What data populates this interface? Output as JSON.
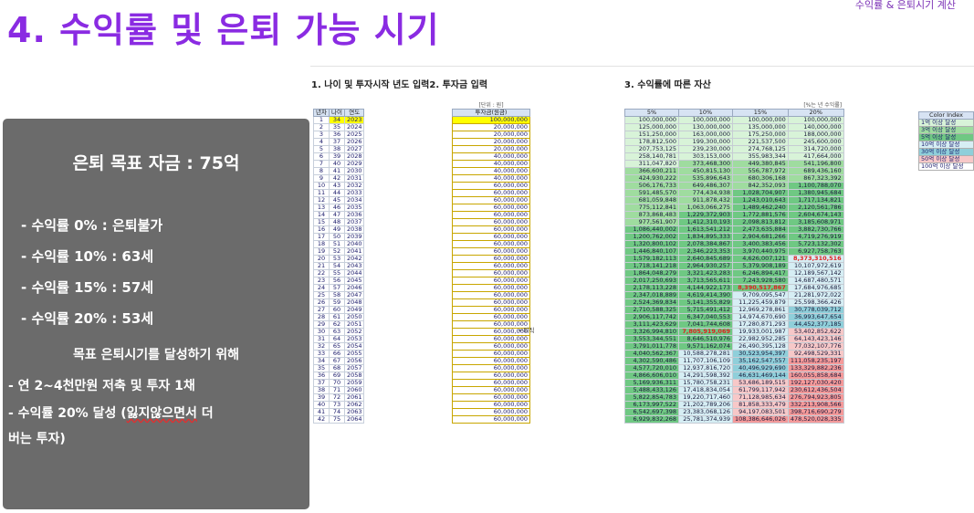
{
  "header": {
    "title": "4. 수익률 및 은퇴 가능 시기",
    "top_right": "수익률 & 은퇴시기 계산"
  },
  "sections": {
    "s1": "1. 나이 및 투자시작 년도 입력2. 투자금 입력",
    "s3": "3. 수익률에 따른 자산"
  },
  "panel": {
    "goal": "은퇴 목표 자금 : 75억",
    "rates": [
      "- 수익률   0% : 은퇴불가",
      "- 수익률 10% : 63세",
      "- 수익률 15% : 57세",
      "- 수익률 20% : 53세"
    ],
    "subtitle": "목표 은퇴시기를 달성하기 위해",
    "bullet1": "- 연 2~4천만원 저축 및 투자 1채",
    "bullet2a": "- 수익률 20% 달성 (",
    "bullet2b": "잃지않으면서",
    "bullet2c": " 더",
    "bullet3": "버는 투자)"
  },
  "table_age": {
    "headers": [
      "년차",
      "나이",
      "연도"
    ],
    "rows": [
      [
        "1",
        "34",
        "2023"
      ],
      [
        "2",
        "35",
        "2024"
      ],
      [
        "3",
        "36",
        "2025"
      ],
      [
        "4",
        "37",
        "2026"
      ],
      [
        "5",
        "38",
        "2027"
      ],
      [
        "6",
        "39",
        "2028"
      ],
      [
        "7",
        "40",
        "2029"
      ],
      [
        "8",
        "41",
        "2030"
      ],
      [
        "9",
        "42",
        "2031"
      ],
      [
        "10",
        "43",
        "2032"
      ],
      [
        "11",
        "44",
        "2033"
      ],
      [
        "12",
        "45",
        "2034"
      ],
      [
        "13",
        "46",
        "2035"
      ],
      [
        "14",
        "47",
        "2036"
      ],
      [
        "15",
        "48",
        "2037"
      ],
      [
        "16",
        "49",
        "2038"
      ],
      [
        "17",
        "50",
        "2039"
      ],
      [
        "18",
        "51",
        "2040"
      ],
      [
        "19",
        "52",
        "2041"
      ],
      [
        "20",
        "53",
        "2042"
      ],
      [
        "21",
        "54",
        "2043"
      ],
      [
        "22",
        "55",
        "2044"
      ],
      [
        "23",
        "56",
        "2045"
      ],
      [
        "24",
        "57",
        "2046"
      ],
      [
        "25",
        "58",
        "2047"
      ],
      [
        "26",
        "59",
        "2048"
      ],
      [
        "27",
        "60",
        "2049"
      ],
      [
        "28",
        "61",
        "2050"
      ],
      [
        "29",
        "62",
        "2051"
      ],
      [
        "30",
        "63",
        "2052"
      ],
      [
        "31",
        "64",
        "2053"
      ],
      [
        "32",
        "65",
        "2054"
      ],
      [
        "33",
        "66",
        "2055"
      ],
      [
        "34",
        "67",
        "2056"
      ],
      [
        "35",
        "68",
        "2057"
      ],
      [
        "36",
        "69",
        "2058"
      ],
      [
        "37",
        "70",
        "2059"
      ],
      [
        "38",
        "71",
        "2060"
      ],
      [
        "39",
        "72",
        "2061"
      ],
      [
        "40",
        "73",
        "2062"
      ],
      [
        "41",
        "74",
        "2063"
      ],
      [
        "42",
        "75",
        "2064"
      ]
    ]
  },
  "table_invest": {
    "unit": "[단위 : 원]",
    "header": "투자금(원금)",
    "values": [
      "100,000,000",
      "20,000,000",
      "20,000,000",
      "20,000,000",
      "20,000,000",
      "40,000,000",
      "40,000,000",
      "40,000,000",
      "40,000,000",
      "60,000,000",
      "60,000,000",
      "60,000,000",
      "60,000,000",
      "60,000,000",
      "60,000,000",
      "60,000,000",
      "60,000,000",
      "60,000,000",
      "60,000,000",
      "60,000,000",
      "60,000,000",
      "60,000,000",
      "60,000,000",
      "60,000,000",
      "60,000,000",
      "60,000,000",
      "60,000,000",
      "60,000,000",
      "60,000,000",
      "60,000,000",
      "60,000,000",
      "60,000,000",
      "60,000,000",
      "60,000,000",
      "60,000,000",
      "60,000,000",
      "60,000,000",
      "60,000,000",
      "60,000,000",
      "60,000,000",
      "60,000,000",
      "60,000,000"
    ],
    "retire_note": "←퇴직"
  },
  "table_assets": {
    "unit": "[%는 년 수익률]",
    "headers": [
      "5%",
      "10%",
      "15%",
      "20%"
    ],
    "rows": [
      [
        "100,000,000",
        "100,000,000",
        "100,000,000",
        "100,000,000"
      ],
      [
        "125,000,000",
        "130,000,000",
        "135,000,000",
        "140,000,000"
      ],
      [
        "151,250,000",
        "163,000,000",
        "175,250,000",
        "188,000,000"
      ],
      [
        "178,812,500",
        "199,300,000",
        "221,537,500",
        "245,600,000"
      ],
      [
        "207,753,125",
        "239,230,000",
        "274,768,125",
        "314,720,000"
      ],
      [
        "258,140,781",
        "303,153,000",
        "355,983,344",
        "417,664,000"
      ],
      [
        "311,047,820",
        "373,468,300",
        "449,380,845",
        "541,196,800"
      ],
      [
        "366,600,211",
        "450,815,130",
        "556,787,972",
        "689,436,160"
      ],
      [
        "424,930,222",
        "535,896,643",
        "680,306,168",
        "867,323,392"
      ],
      [
        "506,176,733",
        "649,486,307",
        "842,352,093",
        "1,100,788,070"
      ],
      [
        "591,485,570",
        "774,434,938",
        "1,028,704,907",
        "1,380,945,684"
      ],
      [
        "681,059,848",
        "911,878,432",
        "1,243,010,643",
        "1,717,134,821"
      ],
      [
        "775,112,841",
        "1,063,066,275",
        "1,489,462,240",
        "2,120,561,786"
      ],
      [
        "873,868,483",
        "1,229,372,903",
        "1,772,881,576",
        "2,604,674,143"
      ],
      [
        "977,561,907",
        "1,412,310,193",
        "2,098,813,812",
        "3,185,608,971"
      ],
      [
        "1,086,440,002",
        "1,613,541,212",
        "2,473,635,884",
        "3,882,730,766"
      ],
      [
        "1,200,762,002",
        "1,834,895,333",
        "2,904,681,266",
        "4,719,276,919"
      ],
      [
        "1,320,800,102",
        "2,078,384,867",
        "3,400,383,456",
        "5,723,132,302"
      ],
      [
        "1,446,840,107",
        "2,346,223,353",
        "3,970,440,975",
        "6,927,758,763"
      ],
      [
        "1,579,182,113",
        "2,640,845,689",
        "4,626,007,121",
        "8,373,310,516"
      ],
      [
        "1,718,141,218",
        "2,964,930,257",
        "5,379,908,189",
        "10,107,972,619"
      ],
      [
        "1,864,048,279",
        "3,321,423,283",
        "6,246,894,417",
        "12,189,567,142"
      ],
      [
        "2,017,250,693",
        "3,713,565,611",
        "7,243,928,580",
        "14,687,480,571"
      ],
      [
        "2,178,113,228",
        "4,144,922,173",
        "8,390,517,867",
        "17,684,976,685"
      ],
      [
        "2,347,018,889",
        "4,619,414,390",
        "9,709,095,547",
        "21,281,972,022"
      ],
      [
        "2,524,369,834",
        "5,141,355,829",
        "11,225,459,879",
        "25,598,366,426"
      ],
      [
        "2,710,588,325",
        "5,715,491,412",
        "12,969,278,861",
        "30,778,039,712"
      ],
      [
        "2,906,117,742",
        "6,347,040,553",
        "14,974,670,690",
        "36,993,647,654"
      ],
      [
        "3,111,423,629",
        "7,041,744,608",
        "17,280,871,293",
        "44,452,377,185"
      ],
      [
        "3,326,994,810",
        "7,805,919,069",
        "19,933,001,987",
        "53,402,852,622"
      ],
      [
        "3,553,344,551",
        "8,646,510,976",
        "22,982,952,285",
        "64,143,423,146"
      ],
      [
        "3,791,011,778",
        "9,571,162,074",
        "26,490,395,128",
        "77,032,107,776"
      ],
      [
        "4,040,562,367",
        "10,588,278,281",
        "30,523,954,397",
        "92,498,529,331"
      ],
      [
        "4,302,590,486",
        "11,707,106,109",
        "35,162,547,557",
        "111,058,235,197"
      ],
      [
        "4,577,720,010",
        "12,937,816,720",
        "40,496,929,690",
        "133,329,882,236"
      ],
      [
        "4,866,606,010",
        "14,291,598,392",
        "46,631,469,144",
        "160,055,858,684"
      ],
      [
        "5,169,936,311",
        "15,780,758,231",
        "53,686,189,515",
        "192,127,030,420"
      ],
      [
        "5,488,433,126",
        "17,418,834,054",
        "61,799,117,942",
        "230,612,436,504"
      ],
      [
        "5,822,854,783",
        "19,220,717,460",
        "71,128,985,634",
        "276,794,923,805"
      ],
      [
        "6,173,997,522",
        "21,202,789,206",
        "81,858,333,479",
        "332,213,908,566"
      ],
      [
        "6,542,697,398",
        "23,383,068,126",
        "94,197,083,501",
        "398,716,690,279"
      ],
      [
        "6,929,832,268",
        "25,781,374,939",
        "108,386,646,026",
        "478,520,028,335"
      ]
    ],
    "classes": [
      [
        "c1",
        "c1",
        "c1",
        "c1"
      ],
      [
        "c1",
        "c1",
        "c1",
        "c1"
      ],
      [
        "c1",
        "c1",
        "c1",
        "c1"
      ],
      [
        "c1",
        "c1",
        "c1",
        "c1"
      ],
      [
        "c1",
        "c1",
        "c1",
        "c1"
      ],
      [
        "c1",
        "c1",
        "c1",
        "c1"
      ],
      [
        "c1",
        "c3",
        "c3",
        "c3"
      ],
      [
        "c3",
        "c3",
        "c3",
        "c3"
      ],
      [
        "c3",
        "c3",
        "c3",
        "c3"
      ],
      [
        "c3",
        "c3",
        "c3",
        "c5"
      ],
      [
        "c3",
        "c3",
        "c5",
        "c5"
      ],
      [
        "c3",
        "c3",
        "c5",
        "c5"
      ],
      [
        "c3",
        "c3",
        "c5",
        "c5"
      ],
      [
        "c3",
        "c5",
        "c5",
        "c5"
      ],
      [
        "c3",
        "c5",
        "c5",
        "c5"
      ],
      [
        "c5",
        "c5",
        "c5",
        "c5"
      ],
      [
        "c5",
        "c5",
        "c5",
        "c5"
      ],
      [
        "c5",
        "c5",
        "c5",
        "c5"
      ],
      [
        "c5",
        "c5",
        "c5",
        "c5"
      ],
      [
        "c5",
        "c5",
        "c5",
        "c10"
      ],
      [
        "c5",
        "c5",
        "c5",
        "c10"
      ],
      [
        "c5",
        "c5",
        "c5",
        "c10"
      ],
      [
        "c5",
        "c5",
        "c5",
        "c10"
      ],
      [
        "c5",
        "c5",
        "c5",
        "c10"
      ],
      [
        "c5",
        "c5",
        "c10",
        "c10"
      ],
      [
        "c5",
        "c5",
        "c10",
        "c10"
      ],
      [
        "c5",
        "c5",
        "c10",
        "c30"
      ],
      [
        "c5",
        "c5",
        "c10",
        "c30"
      ],
      [
        "c5",
        "c5",
        "c10",
        "c30"
      ],
      [
        "c5",
        "c5",
        "c10",
        "c50"
      ],
      [
        "c5",
        "c5",
        "c10",
        "c50"
      ],
      [
        "c5",
        "c5",
        "c10",
        "c50"
      ],
      [
        "c5",
        "c10",
        "c30",
        "c50"
      ],
      [
        "c5",
        "c10",
        "c30",
        "c100"
      ],
      [
        "c5",
        "c10",
        "c30",
        "c100"
      ],
      [
        "c5",
        "c10",
        "c30",
        "c100"
      ],
      [
        "c5",
        "c10",
        "c50",
        "c100"
      ],
      [
        "c5",
        "c10",
        "c50",
        "c100"
      ],
      [
        "c5",
        "c10",
        "c50",
        "c100"
      ],
      [
        "c5",
        "c10",
        "c50",
        "c100"
      ],
      [
        "c5",
        "c10",
        "c50",
        "c100"
      ],
      [
        "c5",
        "c10",
        "c100",
        "c100"
      ]
    ],
    "red_cells": [
      [
        19,
        3
      ],
      [
        23,
        2
      ],
      [
        29,
        1
      ]
    ]
  },
  "color_index": {
    "header": "Color Index",
    "items": [
      {
        "label": "1억 이상 달성",
        "color": "#d8f3d8"
      },
      {
        "label": "3억 이상 달성",
        "color": "#9fdc9f"
      },
      {
        "label": "5억 이상 달성",
        "color": "#6fc883"
      },
      {
        "label": "10억 이상 달성",
        "color": "#d6eef4"
      },
      {
        "label": "30억 이상 달성",
        "color": "#8fcfda"
      },
      {
        "label": "50억 이상 달성",
        "color": "#f7c8c8"
      },
      {
        "label": "100억 이상 달성",
        "color": "#ffffff"
      }
    ]
  }
}
